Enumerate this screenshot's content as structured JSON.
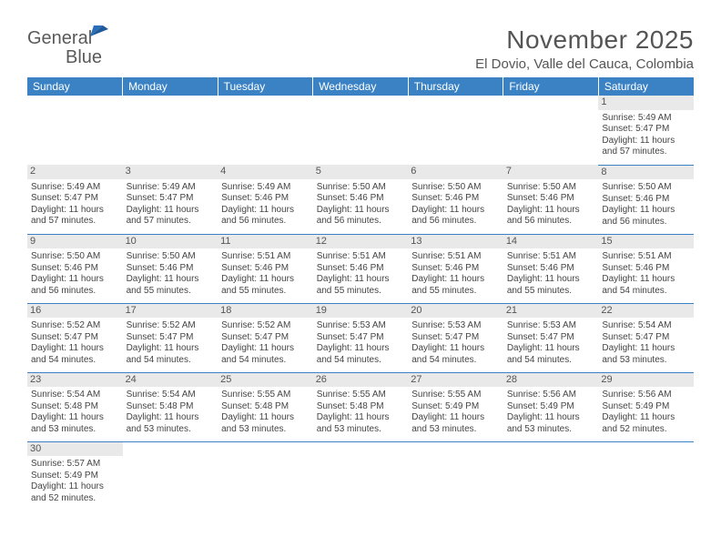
{
  "logo": {
    "text1": "General",
    "text2": "Blue"
  },
  "title": "November 2025",
  "location": "El Dovio, Valle del Cauca, Colombia",
  "colors": {
    "header_bg": "#3b82c4",
    "header_text": "#ffffff",
    "divider": "#3b82c4",
    "daynum_bg": "#e9e9e9",
    "text": "#444444",
    "logo_gray": "#5a5a5a",
    "logo_blue": "#2a6db8"
  },
  "days_of_week": [
    "Sunday",
    "Monday",
    "Tuesday",
    "Wednesday",
    "Thursday",
    "Friday",
    "Saturday"
  ],
  "weeks": [
    [
      null,
      null,
      null,
      null,
      null,
      null,
      {
        "n": "1",
        "sr": "5:49 AM",
        "ss": "5:47 PM",
        "dl": "11 hours and 57 minutes."
      }
    ],
    [
      {
        "n": "2",
        "sr": "5:49 AM",
        "ss": "5:47 PM",
        "dl": "11 hours and 57 minutes."
      },
      {
        "n": "3",
        "sr": "5:49 AM",
        "ss": "5:47 PM",
        "dl": "11 hours and 57 minutes."
      },
      {
        "n": "4",
        "sr": "5:49 AM",
        "ss": "5:46 PM",
        "dl": "11 hours and 56 minutes."
      },
      {
        "n": "5",
        "sr": "5:50 AM",
        "ss": "5:46 PM",
        "dl": "11 hours and 56 minutes."
      },
      {
        "n": "6",
        "sr": "5:50 AM",
        "ss": "5:46 PM",
        "dl": "11 hours and 56 minutes."
      },
      {
        "n": "7",
        "sr": "5:50 AM",
        "ss": "5:46 PM",
        "dl": "11 hours and 56 minutes."
      },
      {
        "n": "8",
        "sr": "5:50 AM",
        "ss": "5:46 PM",
        "dl": "11 hours and 56 minutes."
      }
    ],
    [
      {
        "n": "9",
        "sr": "5:50 AM",
        "ss": "5:46 PM",
        "dl": "11 hours and 56 minutes."
      },
      {
        "n": "10",
        "sr": "5:50 AM",
        "ss": "5:46 PM",
        "dl": "11 hours and 55 minutes."
      },
      {
        "n": "11",
        "sr": "5:51 AM",
        "ss": "5:46 PM",
        "dl": "11 hours and 55 minutes."
      },
      {
        "n": "12",
        "sr": "5:51 AM",
        "ss": "5:46 PM",
        "dl": "11 hours and 55 minutes."
      },
      {
        "n": "13",
        "sr": "5:51 AM",
        "ss": "5:46 PM",
        "dl": "11 hours and 55 minutes."
      },
      {
        "n": "14",
        "sr": "5:51 AM",
        "ss": "5:46 PM",
        "dl": "11 hours and 55 minutes."
      },
      {
        "n": "15",
        "sr": "5:51 AM",
        "ss": "5:46 PM",
        "dl": "11 hours and 54 minutes."
      }
    ],
    [
      {
        "n": "16",
        "sr": "5:52 AM",
        "ss": "5:47 PM",
        "dl": "11 hours and 54 minutes."
      },
      {
        "n": "17",
        "sr": "5:52 AM",
        "ss": "5:47 PM",
        "dl": "11 hours and 54 minutes."
      },
      {
        "n": "18",
        "sr": "5:52 AM",
        "ss": "5:47 PM",
        "dl": "11 hours and 54 minutes."
      },
      {
        "n": "19",
        "sr": "5:53 AM",
        "ss": "5:47 PM",
        "dl": "11 hours and 54 minutes."
      },
      {
        "n": "20",
        "sr": "5:53 AM",
        "ss": "5:47 PM",
        "dl": "11 hours and 54 minutes."
      },
      {
        "n": "21",
        "sr": "5:53 AM",
        "ss": "5:47 PM",
        "dl": "11 hours and 54 minutes."
      },
      {
        "n": "22",
        "sr": "5:54 AM",
        "ss": "5:47 PM",
        "dl": "11 hours and 53 minutes."
      }
    ],
    [
      {
        "n": "23",
        "sr": "5:54 AM",
        "ss": "5:48 PM",
        "dl": "11 hours and 53 minutes."
      },
      {
        "n": "24",
        "sr": "5:54 AM",
        "ss": "5:48 PM",
        "dl": "11 hours and 53 minutes."
      },
      {
        "n": "25",
        "sr": "5:55 AM",
        "ss": "5:48 PM",
        "dl": "11 hours and 53 minutes."
      },
      {
        "n": "26",
        "sr": "5:55 AM",
        "ss": "5:48 PM",
        "dl": "11 hours and 53 minutes."
      },
      {
        "n": "27",
        "sr": "5:55 AM",
        "ss": "5:49 PM",
        "dl": "11 hours and 53 minutes."
      },
      {
        "n": "28",
        "sr": "5:56 AM",
        "ss": "5:49 PM",
        "dl": "11 hours and 53 minutes."
      },
      {
        "n": "29",
        "sr": "5:56 AM",
        "ss": "5:49 PM",
        "dl": "11 hours and 52 minutes."
      }
    ],
    [
      {
        "n": "30",
        "sr": "5:57 AM",
        "ss": "5:49 PM",
        "dl": "11 hours and 52 minutes."
      },
      null,
      null,
      null,
      null,
      null,
      null
    ]
  ],
  "labels": {
    "sunrise": "Sunrise:",
    "sunset": "Sunset:",
    "daylight": "Daylight:"
  }
}
